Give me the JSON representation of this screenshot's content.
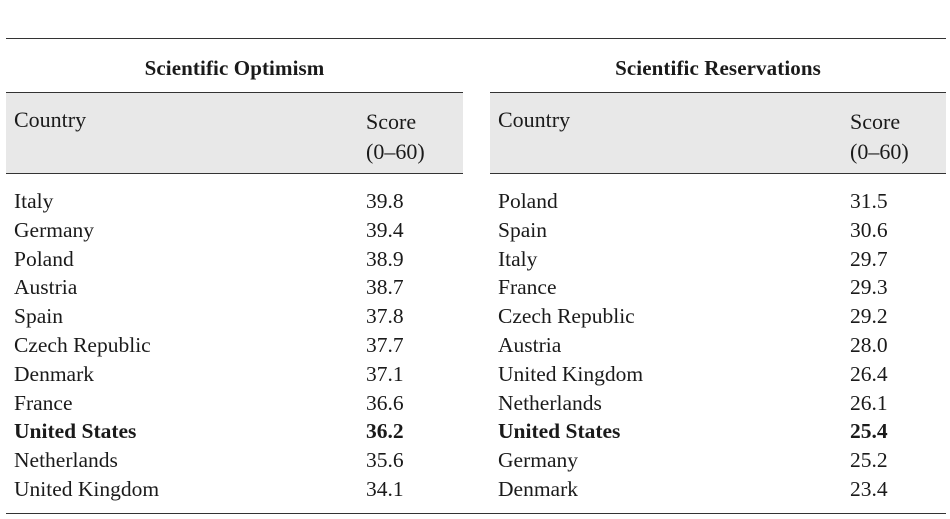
{
  "tables": [
    {
      "title": "Scientific Optimism",
      "headers": {
        "country": "Country",
        "score_line1": "Score",
        "score_line2": "(0–60)"
      },
      "rows": [
        {
          "country": "Italy",
          "score": "39.8",
          "bold": false
        },
        {
          "country": "Germany",
          "score": "39.4",
          "bold": false
        },
        {
          "country": "Poland",
          "score": "38.9",
          "bold": false
        },
        {
          "country": "Austria",
          "score": "38.7",
          "bold": false
        },
        {
          "country": "Spain",
          "score": "37.8",
          "bold": false
        },
        {
          "country": "Czech Republic",
          "score": "37.7",
          "bold": false
        },
        {
          "country": "Denmark",
          "score": "37.1",
          "bold": false
        },
        {
          "country": "France",
          "score": "36.6",
          "bold": false
        },
        {
          "country": "United States",
          "score": "36.2",
          "bold": true
        },
        {
          "country": "Netherlands",
          "score": "35.6",
          "bold": false
        },
        {
          "country": "United Kingdom",
          "score": "34.1",
          "bold": false
        }
      ]
    },
    {
      "title": "Scientific Reservations",
      "headers": {
        "country": "Country",
        "score_line1": "Score",
        "score_line2": "(0–60)"
      },
      "rows": [
        {
          "country": "Poland",
          "score": "31.5",
          "bold": false
        },
        {
          "country": "Spain",
          "score": "30.6",
          "bold": false
        },
        {
          "country": "Italy",
          "score": "29.7",
          "bold": false
        },
        {
          "country": "France",
          "score": "29.3",
          "bold": false
        },
        {
          "country": "Czech Republic",
          "score": "29.2",
          "bold": false
        },
        {
          "country": "Austria",
          "score": "28.0",
          "bold": false
        },
        {
          "country": "United Kingdom",
          "score": "26.4",
          "bold": false
        },
        {
          "country": "Netherlands",
          "score": "26.1",
          "bold": false
        },
        {
          "country": "United States",
          "score": "25.4",
          "bold": true
        },
        {
          "country": "Germany",
          "score": "25.2",
          "bold": false
        },
        {
          "country": "Denmark",
          "score": "23.4",
          "bold": false
        }
      ]
    }
  ],
  "colors": {
    "header_background": "#e8e8e8",
    "rule": "#333333",
    "text": "#1a1a1a"
  }
}
